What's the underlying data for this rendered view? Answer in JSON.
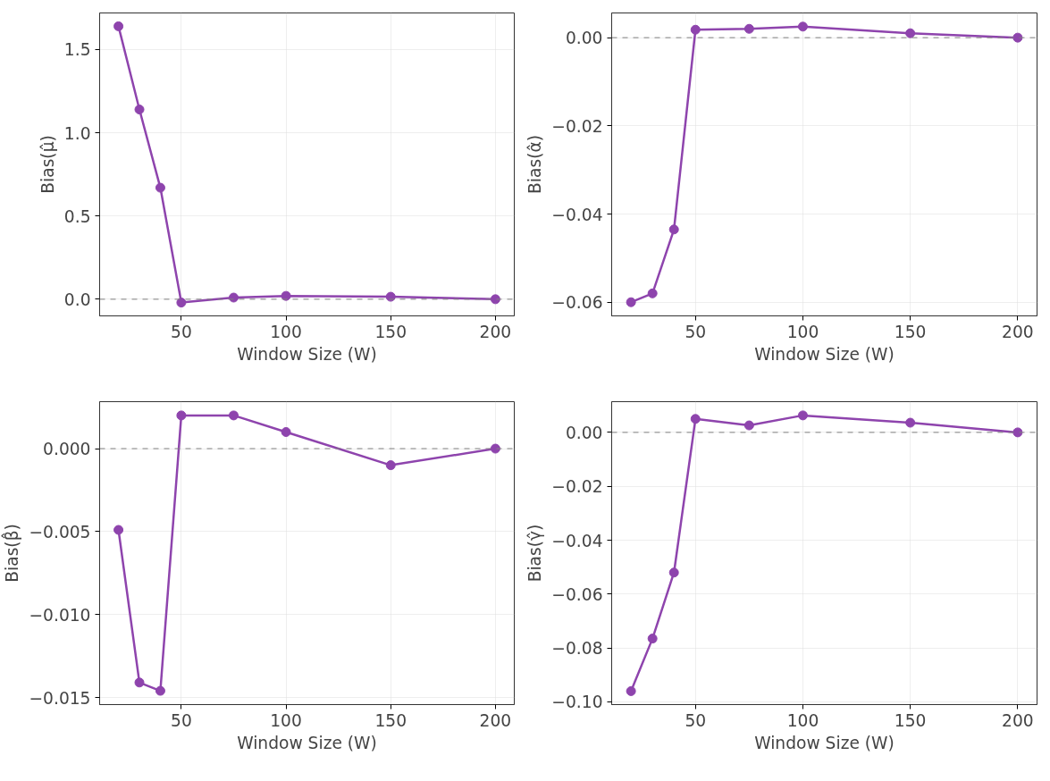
{
  "chart_data": [
    {
      "type": "line",
      "xlabel": "Window Size (W)",
      "ylabel": "Bias(μ̂)",
      "x": [
        20,
        30,
        40,
        50,
        75,
        100,
        150,
        200
      ],
      "series": [
        {
          "color": "#8e44ad",
          "values": [
            1.64,
            1.14,
            0.67,
            -0.02,
            0.01,
            0.02,
            0.015,
            0.0
          ]
        }
      ],
      "xlim": [
        11,
        209
      ],
      "ylim": [
        -0.1,
        1.72
      ],
      "xticks": [
        50,
        100,
        150,
        200
      ],
      "yticks": [
        {
          "value": 0,
          "label": "0.0"
        },
        {
          "value": 0.5,
          "label": "0.5"
        },
        {
          "value": 1,
          "label": "1.0"
        },
        {
          "value": 1.5,
          "label": "1.5"
        }
      ],
      "ref_lines": [
        {
          "axis": "y",
          "value": 0,
          "color": "#808080",
          "line_style": "dashed"
        }
      ],
      "grid": true,
      "marker": "circle",
      "line_style": "solid"
    },
    {
      "type": "line",
      "xlabel": "Window Size (W)",
      "ylabel": "Bias(α̂)",
      "x": [
        20,
        30,
        40,
        50,
        75,
        100,
        150,
        200
      ],
      "series": [
        {
          "color": "#8e44ad",
          "values": [
            -0.06,
            -0.058,
            -0.0435,
            0.0018,
            0.002,
            0.0025,
            0.001,
            0.0
          ]
        }
      ],
      "xlim": [
        11,
        209
      ],
      "ylim": [
        -0.0631,
        0.0056
      ],
      "xticks": [
        50,
        100,
        150,
        200
      ],
      "yticks": [
        {
          "value": 0,
          "label": "0.00"
        },
        {
          "value": -0.02,
          "label": "−0.02"
        },
        {
          "value": -0.04,
          "label": "−0.04"
        },
        {
          "value": -0.06,
          "label": "−0.06"
        }
      ],
      "ref_lines": [
        {
          "axis": "y",
          "value": 0,
          "color": "#808080",
          "line_style": "dashed"
        }
      ],
      "grid": true,
      "marker": "circle",
      "line_style": "solid"
    },
    {
      "type": "line",
      "xlabel": "Window Size (W)",
      "ylabel": "Bias(β̂)",
      "x": [
        20,
        30,
        40,
        50,
        75,
        100,
        150,
        200
      ],
      "series": [
        {
          "color": "#8e44ad",
          "values": [
            -0.0049,
            -0.0141,
            -0.0146,
            0.002,
            0.002,
            0.001,
            -0.001,
            0.0
          ]
        }
      ],
      "xlim": [
        11,
        209
      ],
      "ylim": [
        -0.01543,
        0.00283
      ],
      "xticks": [
        50,
        100,
        150,
        200
      ],
      "yticks": [
        {
          "value": 0,
          "label": "0.000"
        },
        {
          "value": -0.005,
          "label": "−0.005"
        },
        {
          "value": -0.01,
          "label": "−0.010"
        },
        {
          "value": -0.015,
          "label": "−0.015"
        }
      ],
      "ref_lines": [
        {
          "axis": "y",
          "value": 0,
          "color": "#808080",
          "line_style": "dashed"
        }
      ],
      "grid": true,
      "marker": "circle",
      "line_style": "solid"
    },
    {
      "type": "line",
      "xlabel": "Window Size (W)",
      "ylabel": "Bias(γ̂)",
      "x": [
        20,
        30,
        40,
        50,
        75,
        100,
        150,
        200
      ],
      "series": [
        {
          "color": "#8e44ad",
          "values": [
            -0.096,
            -0.0765,
            -0.052,
            0.005,
            0.0026,
            0.0063,
            0.0036,
            0.0
          ]
        }
      ],
      "xlim": [
        11,
        209
      ],
      "ylim": [
        -0.101,
        0.0114
      ],
      "xticks": [
        50,
        100,
        150,
        200
      ],
      "yticks": [
        {
          "value": 0,
          "label": "0.00"
        },
        {
          "value": -0.02,
          "label": "−0.02"
        },
        {
          "value": -0.04,
          "label": "−0.04"
        },
        {
          "value": -0.06,
          "label": "−0.06"
        },
        {
          "value": -0.08,
          "label": "−0.08"
        },
        {
          "value": -0.1,
          "label": "−0.10"
        }
      ],
      "ref_lines": [
        {
          "axis": "y",
          "value": 0,
          "color": "#808080",
          "line_style": "dashed"
        }
      ],
      "grid": true,
      "marker": "circle",
      "line_style": "solid"
    }
  ]
}
